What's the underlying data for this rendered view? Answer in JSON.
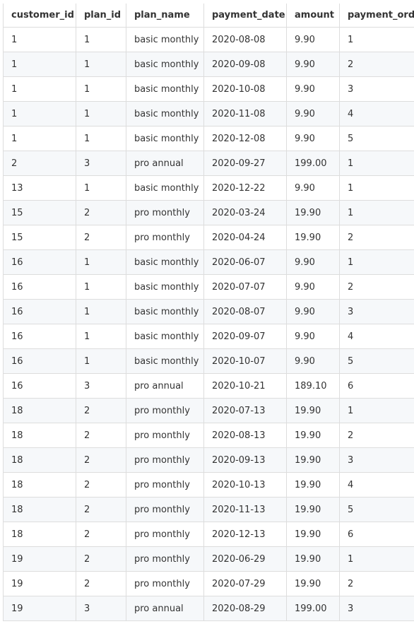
{
  "table": {
    "columns": [
      "customer_id",
      "plan_id",
      "plan_name",
      "payment_date",
      "amount",
      "payment_ord"
    ],
    "rows": [
      [
        "1",
        "1",
        "basic monthly",
        "2020-08-08",
        "9.90",
        "1"
      ],
      [
        "1",
        "1",
        "basic monthly",
        "2020-09-08",
        "9.90",
        "2"
      ],
      [
        "1",
        "1",
        "basic monthly",
        "2020-10-08",
        "9.90",
        "3"
      ],
      [
        "1",
        "1",
        "basic monthly",
        "2020-11-08",
        "9.90",
        "4"
      ],
      [
        "1",
        "1",
        "basic monthly",
        "2020-12-08",
        "9.90",
        "5"
      ],
      [
        "2",
        "3",
        "pro annual",
        "2020-09-27",
        "199.00",
        "1"
      ],
      [
        "13",
        "1",
        "basic monthly",
        "2020-12-22",
        "9.90",
        "1"
      ],
      [
        "15",
        "2",
        "pro monthly",
        "2020-03-24",
        "19.90",
        "1"
      ],
      [
        "15",
        "2",
        "pro monthly",
        "2020-04-24",
        "19.90",
        "2"
      ],
      [
        "16",
        "1",
        "basic monthly",
        "2020-06-07",
        "9.90",
        "1"
      ],
      [
        "16",
        "1",
        "basic monthly",
        "2020-07-07",
        "9.90",
        "2"
      ],
      [
        "16",
        "1",
        "basic monthly",
        "2020-08-07",
        "9.90",
        "3"
      ],
      [
        "16",
        "1",
        "basic monthly",
        "2020-09-07",
        "9.90",
        "4"
      ],
      [
        "16",
        "1",
        "basic monthly",
        "2020-10-07",
        "9.90",
        "5"
      ],
      [
        "16",
        "3",
        "pro annual",
        "2020-10-21",
        "189.10",
        "6"
      ],
      [
        "18",
        "2",
        "pro monthly",
        "2020-07-13",
        "19.90",
        "1"
      ],
      [
        "18",
        "2",
        "pro monthly",
        "2020-08-13",
        "19.90",
        "2"
      ],
      [
        "18",
        "2",
        "pro monthly",
        "2020-09-13",
        "19.90",
        "3"
      ],
      [
        "18",
        "2",
        "pro monthly",
        "2020-10-13",
        "19.90",
        "4"
      ],
      [
        "18",
        "2",
        "pro monthly",
        "2020-11-13",
        "19.90",
        "5"
      ],
      [
        "18",
        "2",
        "pro monthly",
        "2020-12-13",
        "19.90",
        "6"
      ],
      [
        "19",
        "2",
        "pro monthly",
        "2020-06-29",
        "19.90",
        "1"
      ],
      [
        "19",
        "2",
        "pro monthly",
        "2020-07-29",
        "19.90",
        "2"
      ],
      [
        "19",
        "3",
        "pro annual",
        "2020-08-29",
        "199.00",
        "3"
      ]
    ]
  },
  "colors": {
    "border": "#dddddd",
    "row_alt_bg": "#f6f8fa",
    "text": "#333333"
  }
}
